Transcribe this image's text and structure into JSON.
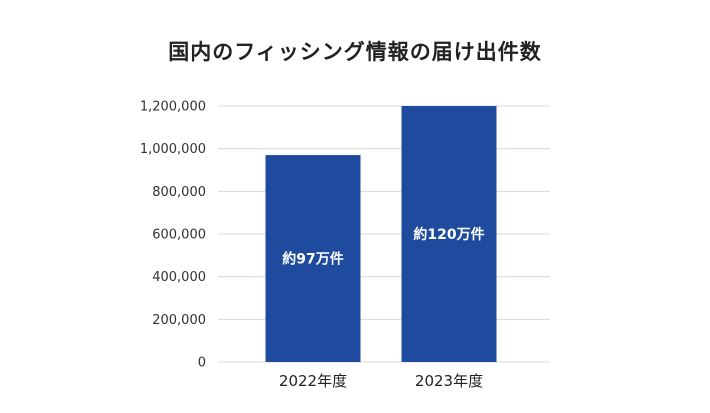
{
  "chart_data": {
    "type": "bar",
    "title": "国内のフィッシング情報の届け出件数",
    "categories": [
      "2022年度",
      "2023年度"
    ],
    "values": [
      970000,
      1200000
    ],
    "data_labels": [
      "約97万件",
      "約120万件"
    ],
    "ylim": [
      0,
      1200000
    ],
    "yticks": [
      0,
      200000,
      400000,
      600000,
      800000,
      1000000,
      1200000
    ],
    "ytick_labels": [
      "0",
      "200,000",
      "400,000",
      "600,000",
      "800,000",
      "1,000,000",
      "1,200,000"
    ],
    "xlabel": "",
    "ylabel": "",
    "grid": true,
    "legend": "none",
    "bar_color": "#1f4b9f",
    "grid_color": "#d9d9d9"
  }
}
